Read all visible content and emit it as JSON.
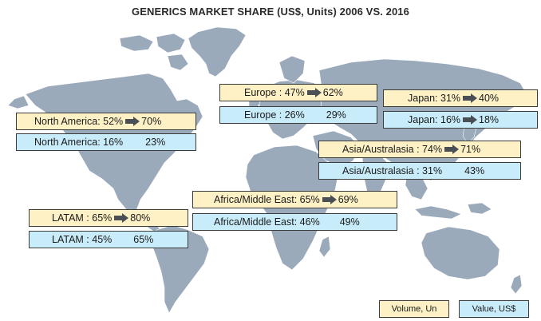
{
  "title": "GENERICS MARKET SHARE (US$, Units) 2006 VS. 2016",
  "regions": [
    {
      "key": "north-america",
      "volume": {
        "label": "North America: 52%",
        "end": "70%"
      },
      "value": {
        "label": "North America: 16%",
        "end": "23%"
      }
    },
    {
      "key": "europe",
      "volume": {
        "label": "Europe : 47%",
        "end": "62%"
      },
      "value": {
        "label": "Europe : 26%",
        "end": "29%"
      }
    },
    {
      "key": "japan",
      "volume": {
        "label": "Japan: 31%",
        "end": "40%"
      },
      "value": {
        "label": "Japan: 16%",
        "end": "18%"
      }
    },
    {
      "key": "asia-australasia",
      "volume": {
        "label": "Asia/Australasia : 74%",
        "end": "71%"
      },
      "value": {
        "label": "Asia/Australasia : 31%",
        "end": "43%"
      }
    },
    {
      "key": "africa-middle-east",
      "volume": {
        "label": "Africa/Middle East: 65%",
        "end": "69%"
      },
      "value": {
        "label": "Africa/Middle East: 46%",
        "end": "49%"
      }
    },
    {
      "key": "latam",
      "volume": {
        "label": "LATAM : 65%",
        "end": "80%"
      },
      "value": {
        "label": "LATAM : 45%",
        "end": "65%"
      }
    }
  ],
  "legend": {
    "volume": "Volume, Un",
    "value": "Value, US$"
  },
  "colors": {
    "volume_fill": "#fdf1c5",
    "value_fill": "#c9ecfb",
    "map": "#9aaabb",
    "arrow": "#4a4f55"
  }
}
